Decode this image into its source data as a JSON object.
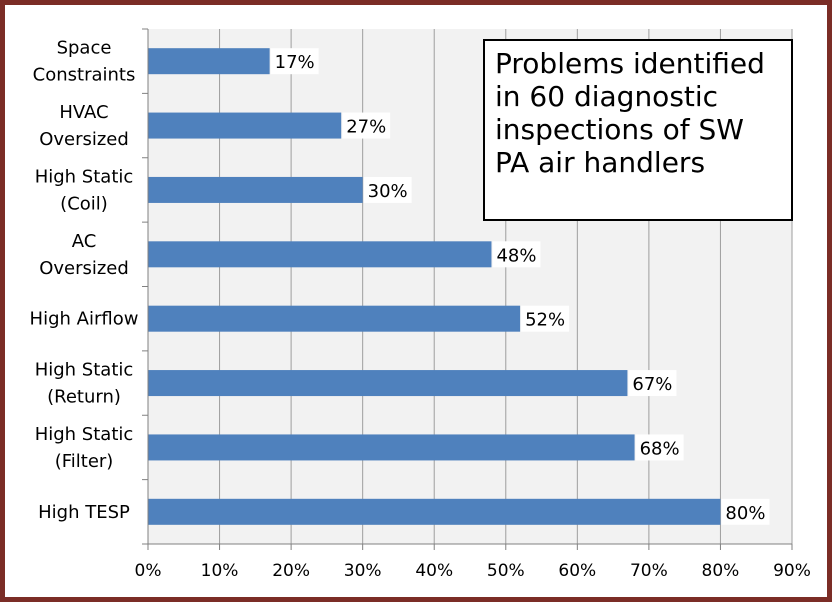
{
  "chart_data": {
    "type": "bar",
    "orientation": "horizontal",
    "title": "Problems identified in 60 diagnostic inspections of SW PA air handlers",
    "categories": [
      [
        "Space",
        "Constraints"
      ],
      [
        "HVAC",
        "Oversized"
      ],
      [
        "High Static",
        "(Coil)"
      ],
      [
        "AC",
        "Oversized"
      ],
      [
        "High Airflow"
      ],
      [
        "High Static",
        "(Return)"
      ],
      [
        "High Static",
        "(Filter)"
      ],
      [
        "High TESP"
      ]
    ],
    "values": [
      17,
      27,
      30,
      48,
      52,
      67,
      68,
      80
    ],
    "data_labels": [
      "17%",
      "27%",
      "30%",
      "48%",
      "52%",
      "67%",
      "68%",
      "80%"
    ],
    "xlim": [
      0,
      90
    ],
    "x_ticks": [
      0,
      10,
      20,
      30,
      40,
      50,
      60,
      70,
      80,
      90
    ],
    "x_tick_labels": [
      "0%",
      "10%",
      "20%",
      "30%",
      "40%",
      "50%",
      "60%",
      "70%",
      "80%",
      "90%"
    ],
    "grid": "vertical",
    "title_placement": "top-right",
    "colors": {
      "bar": "#4f81bd",
      "plot_background": "#f2f2f2",
      "grid": "#9e9e9e",
      "frame_border": "#7b2d26"
    }
  }
}
